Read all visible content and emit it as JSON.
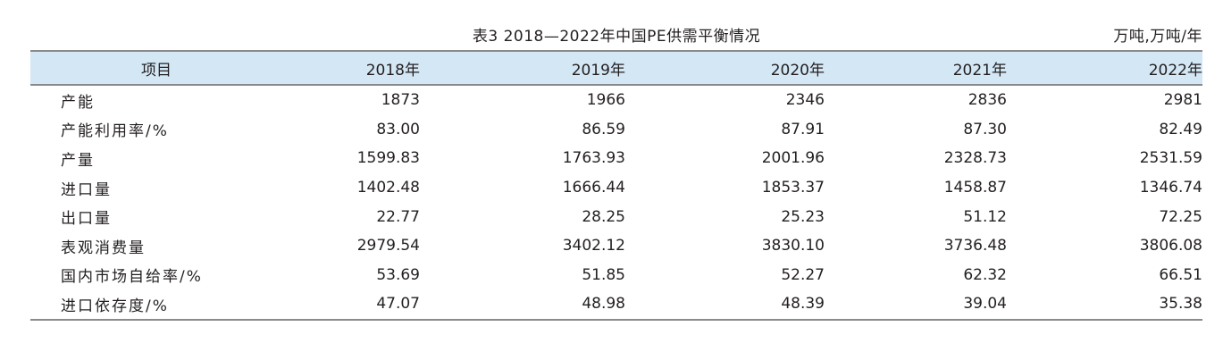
{
  "caption": {
    "title": "表3  2018—2022年中国PE供需平衡情况",
    "unit": "万吨,万吨/年"
  },
  "table": {
    "headers": [
      "项目",
      "2018年",
      "2019年",
      "2020年",
      "2021年",
      "2022年"
    ],
    "rows": [
      {
        "label": "产能",
        "values": [
          "1873",
          "1966",
          "2346",
          "2836",
          "2981"
        ]
      },
      {
        "label": "产能利用率/%",
        "values": [
          "83.00",
          "86.59",
          "87.91",
          "87.30",
          "82.49"
        ]
      },
      {
        "label": "产量",
        "values": [
          "1599.83",
          "1763.93",
          "2001.96",
          "2328.73",
          "2531.59"
        ]
      },
      {
        "label": "进口量",
        "values": [
          "1402.48",
          "1666.44",
          "1853.37",
          "1458.87",
          "1346.74"
        ]
      },
      {
        "label": "出口量",
        "values": [
          "22.77",
          "28.25",
          "25.23",
          "51.12",
          "72.25"
        ]
      },
      {
        "label": "表观消费量",
        "values": [
          "2979.54",
          "3402.12",
          "3830.10",
          "3736.48",
          "3806.08"
        ]
      },
      {
        "label": "国内市场自给率/%",
        "values": [
          "53.69",
          "51.85",
          "52.27",
          "62.32",
          "66.51"
        ]
      },
      {
        "label": "进口依存度/%",
        "values": [
          "47.07",
          "48.98",
          "48.39",
          "39.04",
          "35.38"
        ]
      }
    ]
  },
  "colors": {
    "header_background": "#d3e7f4",
    "rule_line": "#8a8a8a",
    "text": "#231f20"
  }
}
